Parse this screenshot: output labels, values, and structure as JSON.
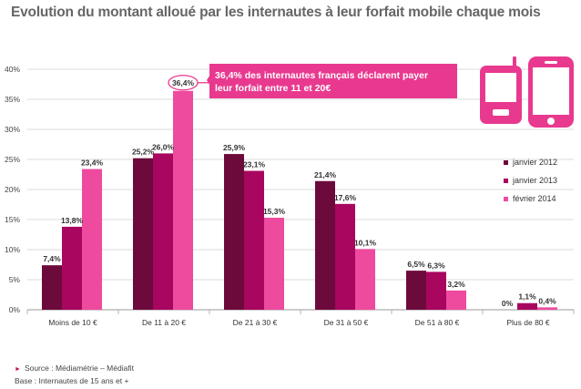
{
  "title": "Evolution du montant alloué par les internautes à leur forfait mobile chaque mois",
  "callout": {
    "line1": "36,4% des internautes français déclarent payer",
    "line2": "leur forfait entre 11 et 20€"
  },
  "footer": {
    "source": "Source : Médiamétrie – Médiafit",
    "base": "Base : Internautes de 15 ans et +"
  },
  "colors": {
    "accent": "#e8398f",
    "series_2012": "#6d0a3c",
    "series_2013": "#a8065f",
    "series_2014": "#ee4a9e"
  },
  "icons": [
    "mobile-phone-icon",
    "smartphone-icon"
  ],
  "chart_data": {
    "type": "bar",
    "categories": [
      "Moins de 10 €",
      "De 11 à 20 €",
      "De 21 à 30 €",
      "De 31 à 50 €",
      "De 51 à 80 €",
      "Plus de 80 €"
    ],
    "series": [
      {
        "name": "janvier 2012",
        "values": [
          7.4,
          25.2,
          25.9,
          21.4,
          6.5,
          0
        ],
        "labels": [
          "7,4%",
          "25,2%",
          "25,9%",
          "21,4%",
          "6,5%",
          "0%"
        ]
      },
      {
        "name": "janvier 2013",
        "values": [
          13.8,
          26.0,
          23.1,
          17.6,
          6.3,
          1.1
        ],
        "labels": [
          "13,8%",
          "26,0%",
          "23,1%",
          "17,6%",
          "6,3%",
          "1,1%"
        ]
      },
      {
        "name": "février 2014",
        "values": [
          23.4,
          36.4,
          15.3,
          10.1,
          3.2,
          0.4
        ],
        "labels": [
          "23,4%",
          "36,4%",
          "15,3%",
          "10,1%",
          "3,2%",
          "0,4%"
        ]
      }
    ],
    "yticks": [
      "0%",
      "5%",
      "10%",
      "15%",
      "20%",
      "25%",
      "30%",
      "35%",
      "40%"
    ],
    "ylim": [
      0,
      40
    ],
    "legend_position": "right",
    "highlight": {
      "series": 2,
      "category": 1
    }
  }
}
